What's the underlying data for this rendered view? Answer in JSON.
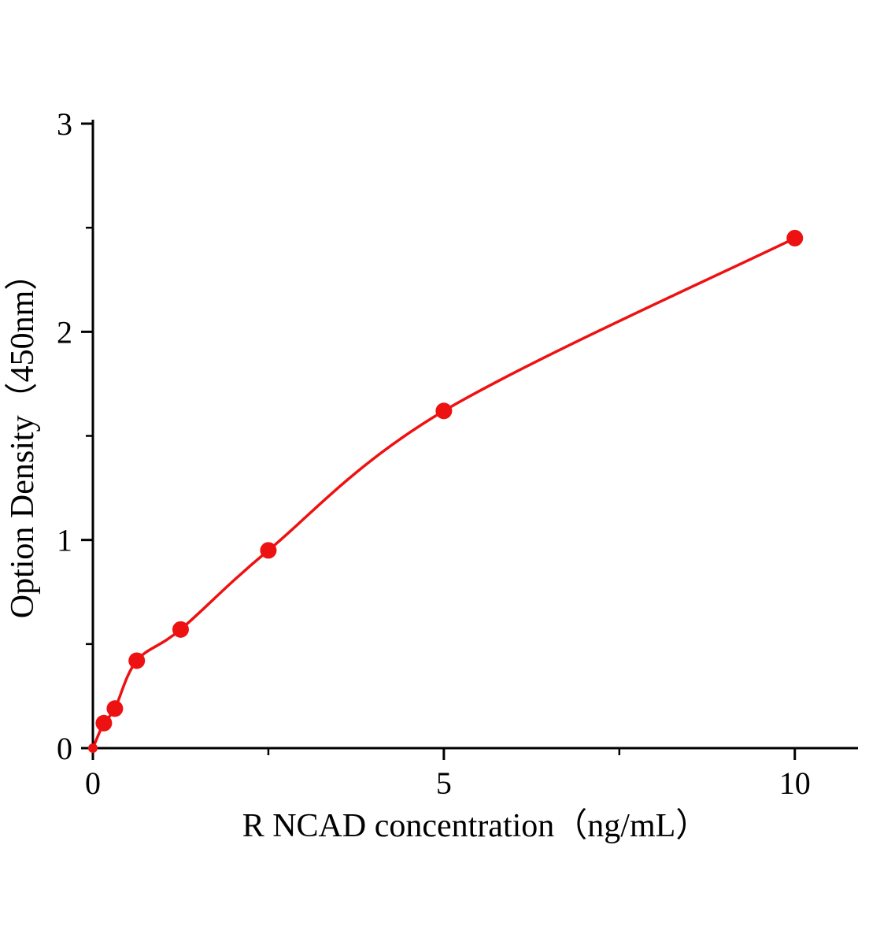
{
  "chart_data": {
    "type": "scatter",
    "title": "",
    "xlabel": "R NCAD concentration（ng/mL）",
    "ylabel": "Option Density（450nm）",
    "x": [
      0,
      0.156,
      0.313,
      0.625,
      1.25,
      2.5,
      5,
      10
    ],
    "y": [
      0,
      0.12,
      0.19,
      0.42,
      0.57,
      0.95,
      1.62,
      2.45
    ],
    "xlim": [
      0,
      10.9
    ],
    "ylim": [
      0,
      3
    ],
    "x_major_ticks": [
      0,
      5,
      10
    ],
    "x_minor_ticks": [
      2.5,
      7.5
    ],
    "y_major_ticks": [
      0,
      1,
      2,
      3
    ],
    "y_minor_ticks": [
      0.5,
      1.5,
      2.5
    ],
    "x_tick_labels": [
      "0",
      "5",
      "10"
    ],
    "y_tick_labels": [
      "0",
      "1",
      "2",
      "3"
    ],
    "point_color": "#ee1111",
    "line_color": "#ee1111",
    "axis_color": "#000000",
    "grid": false,
    "legend": null,
    "marker": "circle",
    "curve": "smooth-fit"
  }
}
